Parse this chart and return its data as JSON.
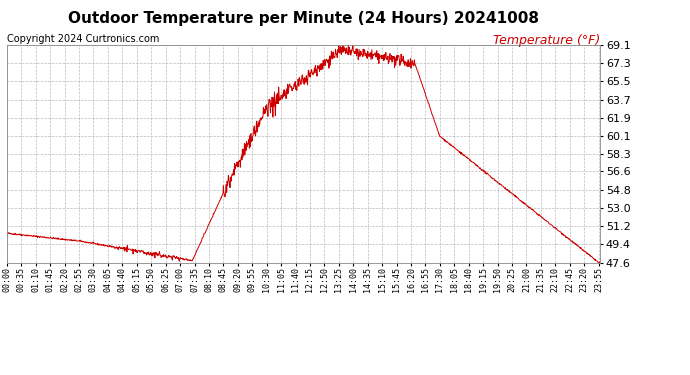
{
  "title": "Outdoor Temperature per Minute (24 Hours) 20241008",
  "copyright": "Copyright 2024 Curtronics.com",
  "legend_label": "Temperature (°F)",
  "line_color": "#cc0000",
  "background_color": "#ffffff",
  "grid_color": "#aaaaaa",
  "yticks": [
    47.6,
    49.4,
    51.2,
    53.0,
    54.8,
    56.6,
    58.3,
    60.1,
    61.9,
    63.7,
    65.5,
    67.3,
    69.1
  ],
  "ylim": [
    47.6,
    69.1
  ],
  "xtick_labels": [
    "00:00",
    "00:35",
    "01:10",
    "01:45",
    "02:20",
    "02:55",
    "03:30",
    "04:05",
    "04:40",
    "05:15",
    "05:50",
    "06:25",
    "07:00",
    "07:35",
    "08:10",
    "08:45",
    "09:20",
    "09:55",
    "10:30",
    "11:05",
    "11:40",
    "12:15",
    "12:50",
    "13:25",
    "14:00",
    "14:35",
    "15:10",
    "15:45",
    "16:20",
    "16:55",
    "17:30",
    "18:05",
    "18:40",
    "19:15",
    "19:50",
    "20:25",
    "21:00",
    "21:35",
    "22:10",
    "22:45",
    "23:20",
    "23:55"
  ],
  "title_fontsize": 11,
  "copyright_fontsize": 7,
  "legend_fontsize": 9,
  "ytick_fontsize": 8,
  "xtick_fontsize": 6
}
